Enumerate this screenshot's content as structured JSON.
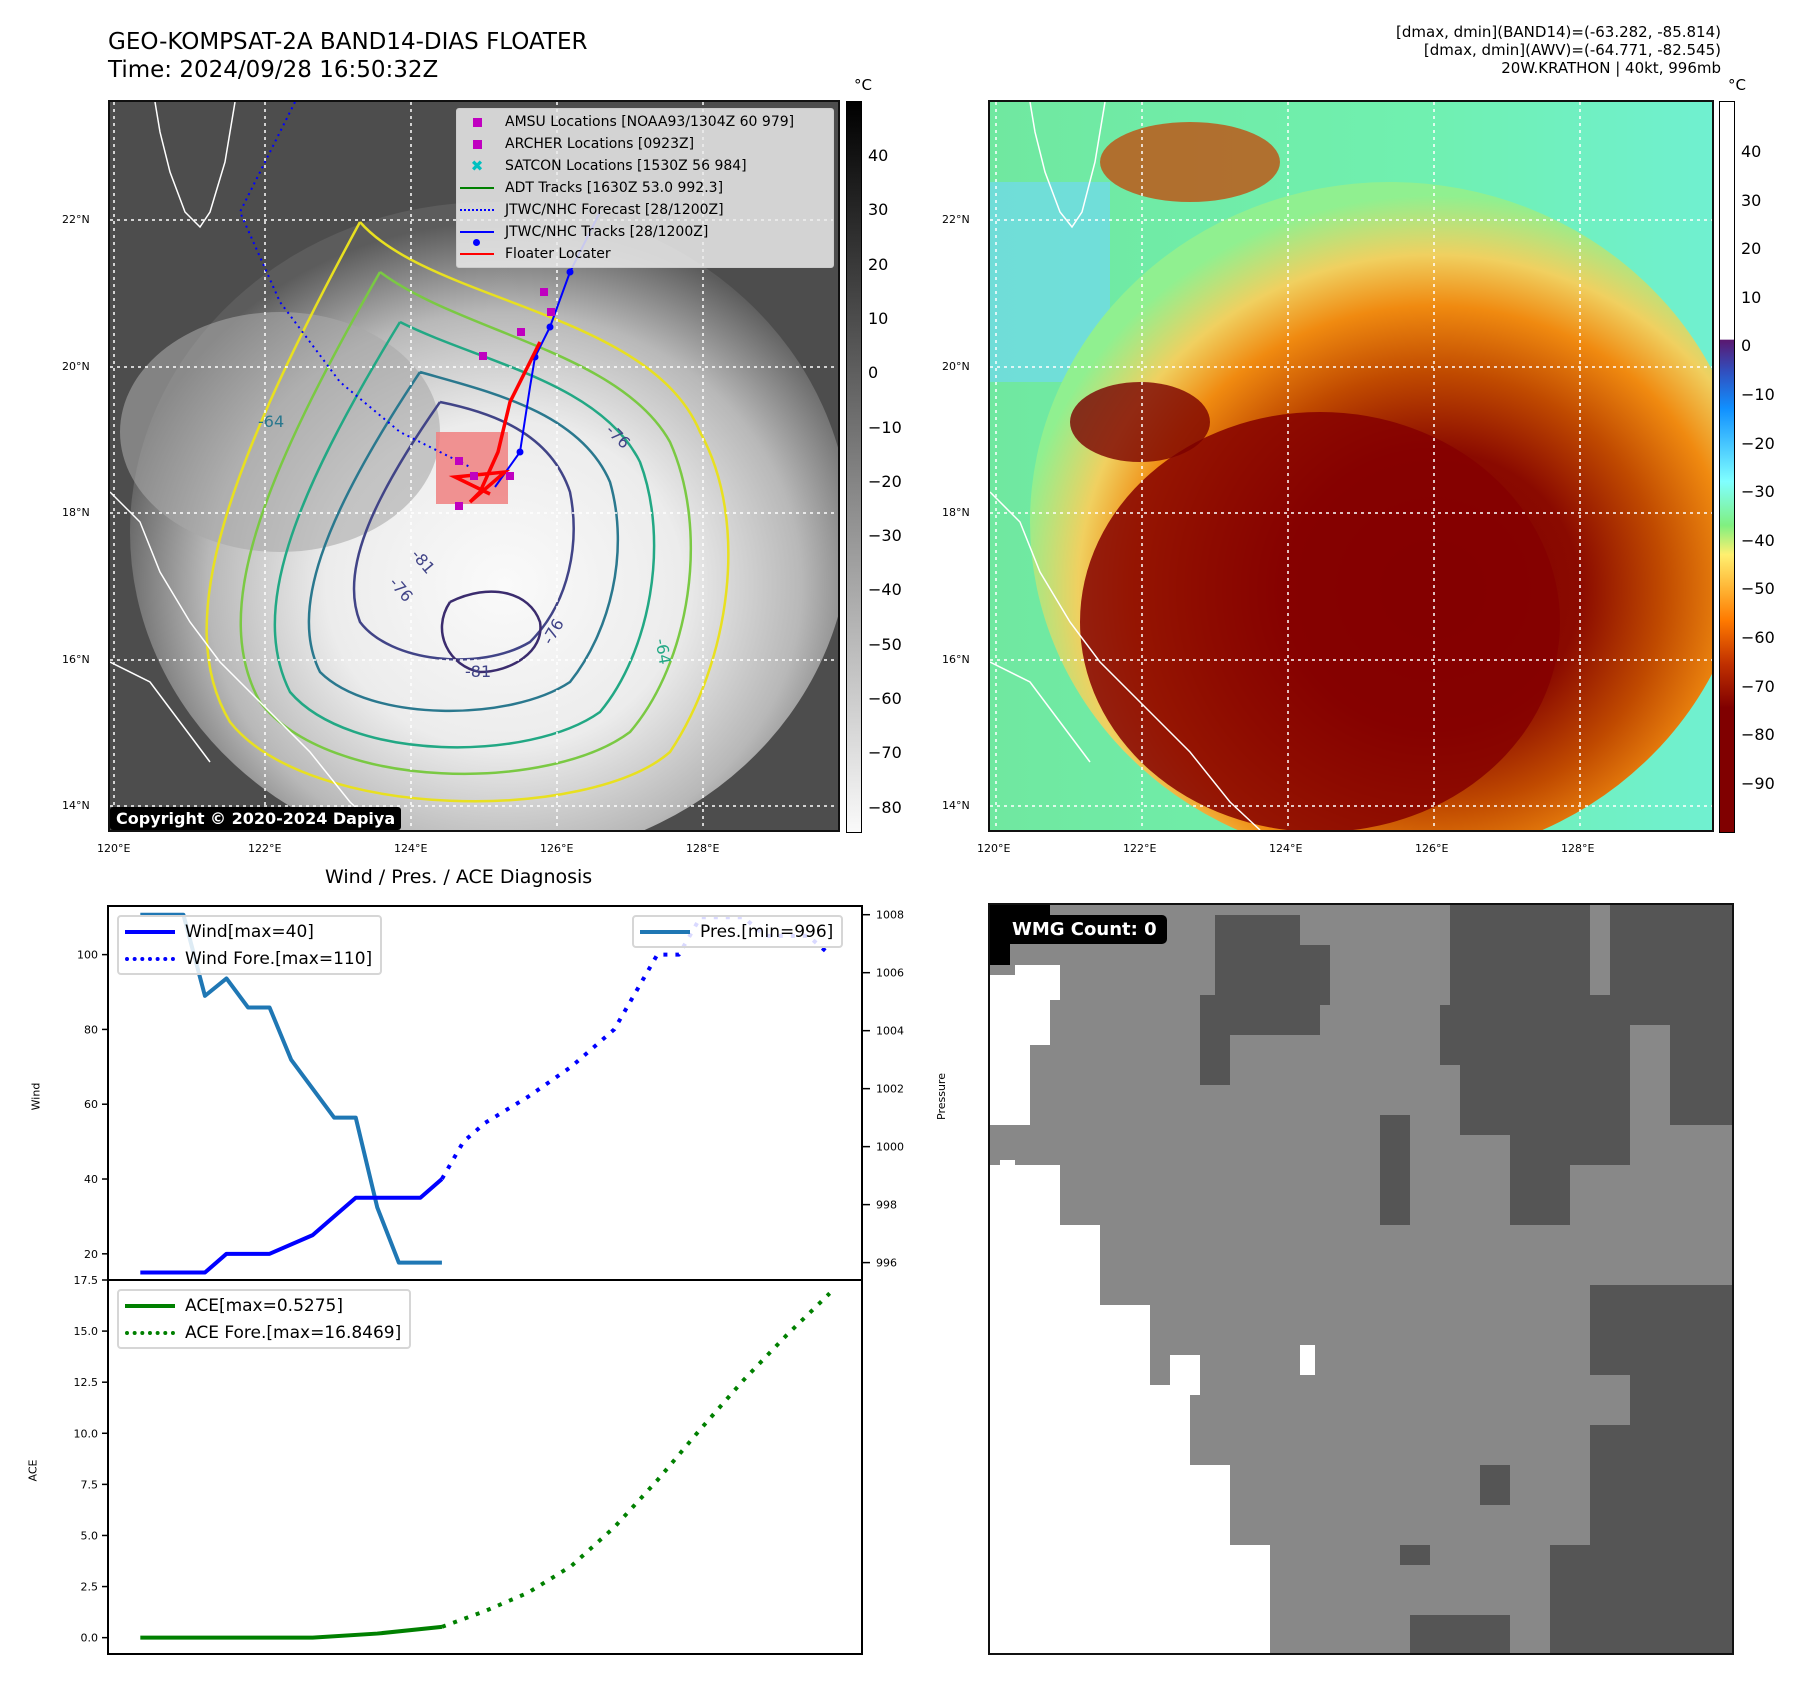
{
  "header": {
    "title_line1": "GEO-KOMPSAT-2A BAND14-DIAS FLOATER",
    "title_line2": "Time: 2024/09/28 16:50:32Z",
    "info_line1": "[dmax, dmin](BAND14)=(-63.282, -85.814)",
    "info_line2": "[dmax, dmin](AWV)=(-64.771, -82.545)",
    "info_line3": "20W.KRATHON | 40kt, 996mb"
  },
  "map_ir": {
    "lat_labels": [
      "22°N",
      "20°N",
      "18°N",
      "16°N",
      "14°N"
    ],
    "lon_labels": [
      "120°E",
      "122°E",
      "124°E",
      "126°E",
      "128°E"
    ],
    "contour_labels": [
      "-64",
      "-76",
      "-81",
      "-76",
      "-64",
      "-81",
      "-76"
    ],
    "copyright": "Copyright © 2020-2024 Dapiya",
    "legend": [
      {
        "label": "AMSU Locations [NOAA93/1304Z 60 979]",
        "marker": "square",
        "color": "#c000c0"
      },
      {
        "label": "ARCHER Locations [0923Z]",
        "marker": "square",
        "color": "#c000c0"
      },
      {
        "label": "SATCON Locations [1530Z 56 984]",
        "marker": "x",
        "color": "#00c0c0"
      },
      {
        "label": "ADT Tracks [1630Z 53.0 992.3]",
        "marker": "line",
        "color": "#008000"
      },
      {
        "label": "JTWC/NHC Forecast [28/1200Z]",
        "marker": "dotted",
        "color": "#0000ff"
      },
      {
        "label": "JTWC/NHC Tracks [28/1200Z]",
        "marker": "line-dot",
        "color": "#0000ff"
      },
      {
        "label": "Floater Locater",
        "marker": "line",
        "color": "#ff0000"
      }
    ],
    "colorbar": {
      "unit": "°C",
      "ticks": [
        "40",
        "30",
        "20",
        "10",
        "0",
        "−10",
        "−20",
        "−30",
        "−40",
        "−50",
        "−60",
        "−70",
        "−80"
      ]
    }
  },
  "map_awv": {
    "lat_labels": [
      "22°N",
      "20°N",
      "18°N",
      "16°N",
      "14°N"
    ],
    "lon_labels": [
      "120°E",
      "122°E",
      "124°E",
      "126°E",
      "128°E"
    ],
    "colorbar": {
      "unit": "°C",
      "ticks": [
        "40",
        "30",
        "20",
        "10",
        "0",
        "−10",
        "−20",
        "−30",
        "−40",
        "−50",
        "−60",
        "−70",
        "−80",
        "−90"
      ]
    }
  },
  "wmg": {
    "label": "WMG Count: 0"
  },
  "chart_data": [
    {
      "type": "line",
      "title": "Wind / Pres. / ACE Diagnosis",
      "ylabel": "Wind",
      "ylabel_right": "Pressure",
      "ylim": [
        13,
        113
      ],
      "ylim_right": [
        995.4,
        1008.3
      ],
      "yticks": [
        "100",
        "80",
        "60",
        "40",
        "20"
      ],
      "yticks_right": [
        "1008",
        "1006",
        "1004",
        "1002",
        "1000",
        "998",
        "996"
      ],
      "x": [
        0,
        1,
        2,
        3,
        4,
        5,
        6,
        7,
        8,
        9,
        10,
        11,
        12,
        13,
        14,
        15,
        16,
        17,
        18,
        19,
        20,
        21,
        22,
        23,
        24,
        25,
        26,
        27,
        28,
        29,
        30,
        31,
        32
      ],
      "series": [
        {
          "name": "Wind[max=40]",
          "style": "solid",
          "color": "#0000ff",
          "axis": "left",
          "x": [
            0,
            3,
            4,
            6,
            8,
            9,
            10,
            11,
            13,
            14
          ],
          "values": [
            15,
            15,
            20,
            20,
            25,
            30,
            35,
            35,
            35,
            40
          ]
        },
        {
          "name": "Wind Fore.[max=110]",
          "style": "dotted",
          "color": "#0000ff",
          "axis": "left",
          "x": [
            14,
            15,
            16,
            18,
            20,
            22,
            24,
            25,
            26,
            27,
            28,
            29,
            30,
            31,
            32
          ],
          "values": [
            40,
            50,
            55,
            62,
            70,
            80,
            100,
            100,
            110,
            110,
            110,
            105,
            105,
            105,
            100
          ]
        },
        {
          "name": "Pres.[min=996]",
          "style": "solid",
          "color": "#1f77b4",
          "axis": "right",
          "x": [
            0,
            2,
            3,
            4,
            5,
            6,
            7,
            8,
            9,
            10,
            11,
            12,
            13,
            14
          ],
          "values": [
            1008,
            1008,
            1005.2,
            1005.8,
            1004.8,
            1004.8,
            1003.0,
            1002.0,
            1001.0,
            1001.0,
            997.9,
            996.0,
            996.0,
            996.0
          ]
        }
      ]
    },
    {
      "type": "line",
      "ylabel": "ACE",
      "ylim": [
        -0.8,
        17.5
      ],
      "yticks": [
        "17.5",
        "15.0",
        "12.5",
        "10.0",
        "7.5",
        "5.0",
        "2.5",
        "0.0"
      ],
      "series": [
        {
          "name": "ACE[max=0.5275]",
          "style": "solid",
          "color": "#008000",
          "x": [
            0,
            4,
            8,
            11,
            14
          ],
          "values": [
            0,
            0,
            0,
            0.2,
            0.5275
          ]
        },
        {
          "name": "ACE Fore.[max=16.8469]",
          "style": "dotted",
          "color": "#008000",
          "x": [
            14,
            16,
            18,
            20,
            22,
            24,
            26,
            28,
            30,
            32
          ],
          "values": [
            0.5275,
            1.3,
            2.2,
            3.5,
            5.4,
            7.7,
            10.2,
            12.6,
            14.8,
            16.8469
          ]
        }
      ]
    }
  ]
}
